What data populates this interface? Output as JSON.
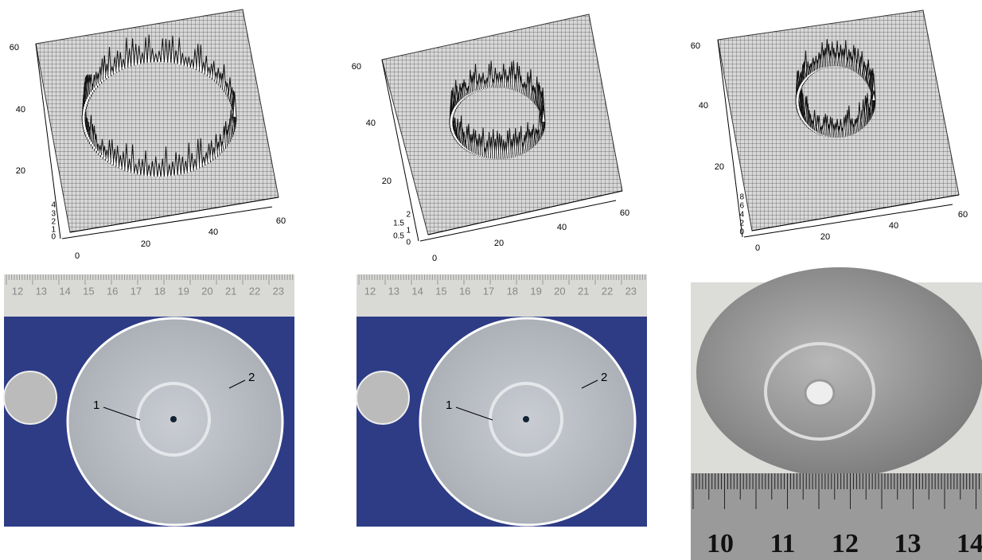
{
  "plots": [
    {
      "y_ticks": [
        "20",
        "40",
        "60"
      ],
      "z_ticks": [
        "0",
        "1",
        "2",
        "3",
        "4"
      ],
      "x_ticks": [
        "0",
        "20",
        "40",
        "60"
      ]
    },
    {
      "y_ticks": [
        "20",
        "40",
        "60"
      ],
      "z_ticks": [
        "0",
        "0.5",
        "1",
        "1.5",
        "2"
      ],
      "x_ticks": [
        "0",
        "20",
        "40",
        "60"
      ]
    },
    {
      "y_ticks": [
        "20",
        "40",
        "60"
      ],
      "z_ticks": [
        "0",
        "2",
        "4",
        "6",
        "8"
      ],
      "x_ticks": [
        "0",
        "20",
        "40",
        "60"
      ]
    }
  ],
  "photos": [
    {
      "ruler": [
        "12",
        "13",
        "14",
        "15",
        "16",
        "17",
        "18",
        "19",
        "20",
        "21",
        "22",
        "23"
      ],
      "labels": [
        "1",
        "2"
      ]
    },
    {
      "ruler": [
        "12",
        "13",
        "14",
        "15",
        "16",
        "17",
        "18",
        "19",
        "20",
        "21",
        "22",
        "23"
      ],
      "labels": [
        "1",
        "2"
      ]
    },
    {
      "ruler": [
        "10",
        "11",
        "12",
        "13",
        "14"
      ]
    }
  ]
}
